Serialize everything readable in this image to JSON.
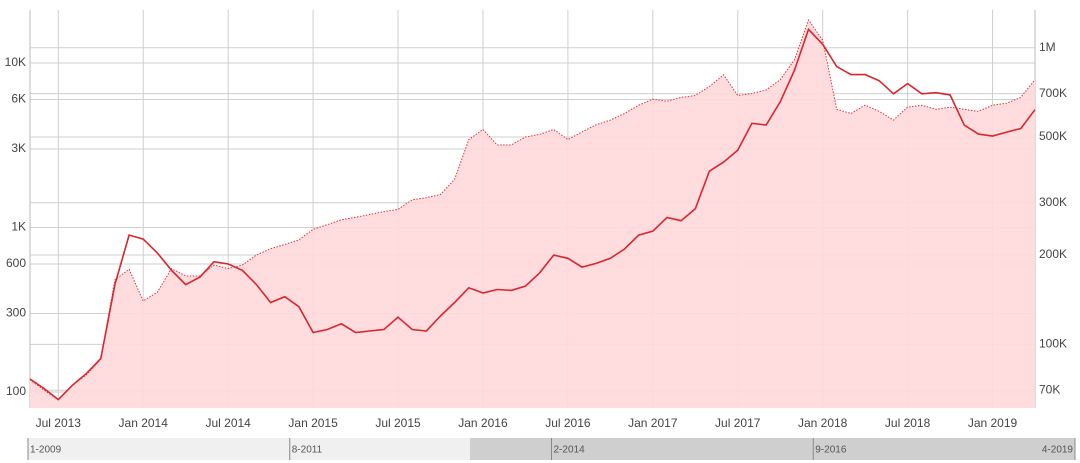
{
  "chart_data": {
    "type": "line",
    "log_scale": true,
    "grid": true,
    "x": [
      "2013-05",
      "2013-06",
      "2013-07",
      "2013-08",
      "2013-09",
      "2013-10",
      "2013-11",
      "2013-12",
      "2014-01",
      "2014-02",
      "2014-03",
      "2014-04",
      "2014-05",
      "2014-06",
      "2014-07",
      "2014-08",
      "2014-09",
      "2014-10",
      "2014-11",
      "2014-12",
      "2015-01",
      "2015-02",
      "2015-03",
      "2015-04",
      "2015-05",
      "2015-06",
      "2015-07",
      "2015-08",
      "2015-09",
      "2015-10",
      "2015-11",
      "2015-12",
      "2016-01",
      "2016-02",
      "2016-03",
      "2016-04",
      "2016-05",
      "2016-06",
      "2016-07",
      "2016-08",
      "2016-09",
      "2016-10",
      "2016-11",
      "2016-12",
      "2017-01",
      "2017-02",
      "2017-03",
      "2017-04",
      "2017-05",
      "2017-06",
      "2017-07",
      "2017-08",
      "2017-09",
      "2017-10",
      "2017-11",
      "2017-12",
      "2018-01",
      "2018-02",
      "2018-03",
      "2018-04",
      "2018-05",
      "2018-06",
      "2018-07",
      "2018-08",
      "2018-09",
      "2018-10",
      "2018-11",
      "2018-12",
      "2019-01",
      "2019-02",
      "2019-03",
      "2019-04"
    ],
    "xlim": [
      "2013-05",
      "2019-04"
    ],
    "xticks": [
      {
        "value": "2013-07",
        "label": "Jul 2013"
      },
      {
        "value": "2014-01",
        "label": "Jan 2014"
      },
      {
        "value": "2014-07",
        "label": "Jul 2014"
      },
      {
        "value": "2015-01",
        "label": "Jan 2015"
      },
      {
        "value": "2015-07",
        "label": "Jul 2015"
      },
      {
        "value": "2016-01",
        "label": "Jan 2016"
      },
      {
        "value": "2016-07",
        "label": "Jul 2016"
      },
      {
        "value": "2017-01",
        "label": "Jan 2017"
      },
      {
        "value": "2017-07",
        "label": "Jul 2017"
      },
      {
        "value": "2018-01",
        "label": "Jan 2018"
      },
      {
        "value": "2018-07",
        "label": "Jul 2018"
      },
      {
        "value": "2019-01",
        "label": "Jan 2019"
      }
    ],
    "ylim": [
      80,
      21000
    ],
    "yticks": [
      100,
      300,
      600,
      {
        "value": 1000,
        "label": "1K"
      },
      {
        "value": 3000,
        "label": "3K"
      },
      {
        "value": 6000,
        "label": "6K"
      },
      {
        "value": 10000,
        "label": "10K"
      }
    ],
    "y2lim": [
      61000,
      1340000
    ],
    "y2ticks": [
      {
        "value": 70000,
        "label": "70K"
      },
      {
        "value": 100000,
        "label": "100K"
      },
      {
        "value": 200000,
        "label": "200K"
      },
      {
        "value": 300000,
        "label": "300K"
      },
      {
        "value": 500000,
        "label": "500K"
      },
      {
        "value": 700000,
        "label": "700K"
      },
      {
        "value": 1000000,
        "label": "1M"
      }
    ],
    "series": [
      {
        "color": "#e0303a",
        "axis": "y2",
        "style": "dotted",
        "fill": "#ffd9dc",
        "values": [
          76000,
          70000,
          65000,
          73000,
          79000,
          89000,
          165000,
          179000,
          140000,
          150000,
          180000,
          170000,
          170000,
          185000,
          180000,
          185000,
          200000,
          210000,
          217000,
          225000,
          244000,
          253000,
          263000,
          268000,
          274000,
          280000,
          285000,
          307000,
          312000,
          320000,
          360000,
          490000,
          530000,
          470000,
          470000,
          500000,
          510000,
          530000,
          490000,
          520000,
          550000,
          570000,
          600000,
          640000,
          670000,
          660000,
          680000,
          690000,
          740000,
          810000,
          690000,
          700000,
          720000,
          780000,
          910000,
          1240000,
          1060000,
          620000,
          600000,
          640000,
          610000,
          570000,
          630000,
          640000,
          620000,
          630000,
          620000,
          610000,
          640000,
          650000,
          680000,
          780000
        ]
      },
      {
        "color": "#d9262e",
        "axis": "y",
        "style": "solid",
        "values": [
          120,
          105,
          90,
          110,
          130,
          160,
          450,
          900,
          850,
          700,
          550,
          450,
          500,
          620,
          600,
          550,
          450,
          350,
          380,
          330,
          230,
          240,
          260,
          230,
          235,
          240,
          285,
          240,
          235,
          290,
          350,
          430,
          400,
          420,
          415,
          440,
          530,
          680,
          650,
          575,
          605,
          650,
          740,
          900,
          950,
          1150,
          1100,
          1300,
          2200,
          2500,
          2950,
          4300,
          4200,
          5800,
          9000,
          16000,
          13000,
          9500,
          8500,
          8500,
          7800,
          6500,
          7500,
          6500,
          6600,
          6400,
          4200,
          3700,
          3600,
          3800,
          4000,
          5200
        ]
      }
    ],
    "navigator": {
      "labels": [
        "1-2009",
        "8-2011",
        "2-2014",
        "9-2016",
        "4-2019"
      ]
    }
  }
}
